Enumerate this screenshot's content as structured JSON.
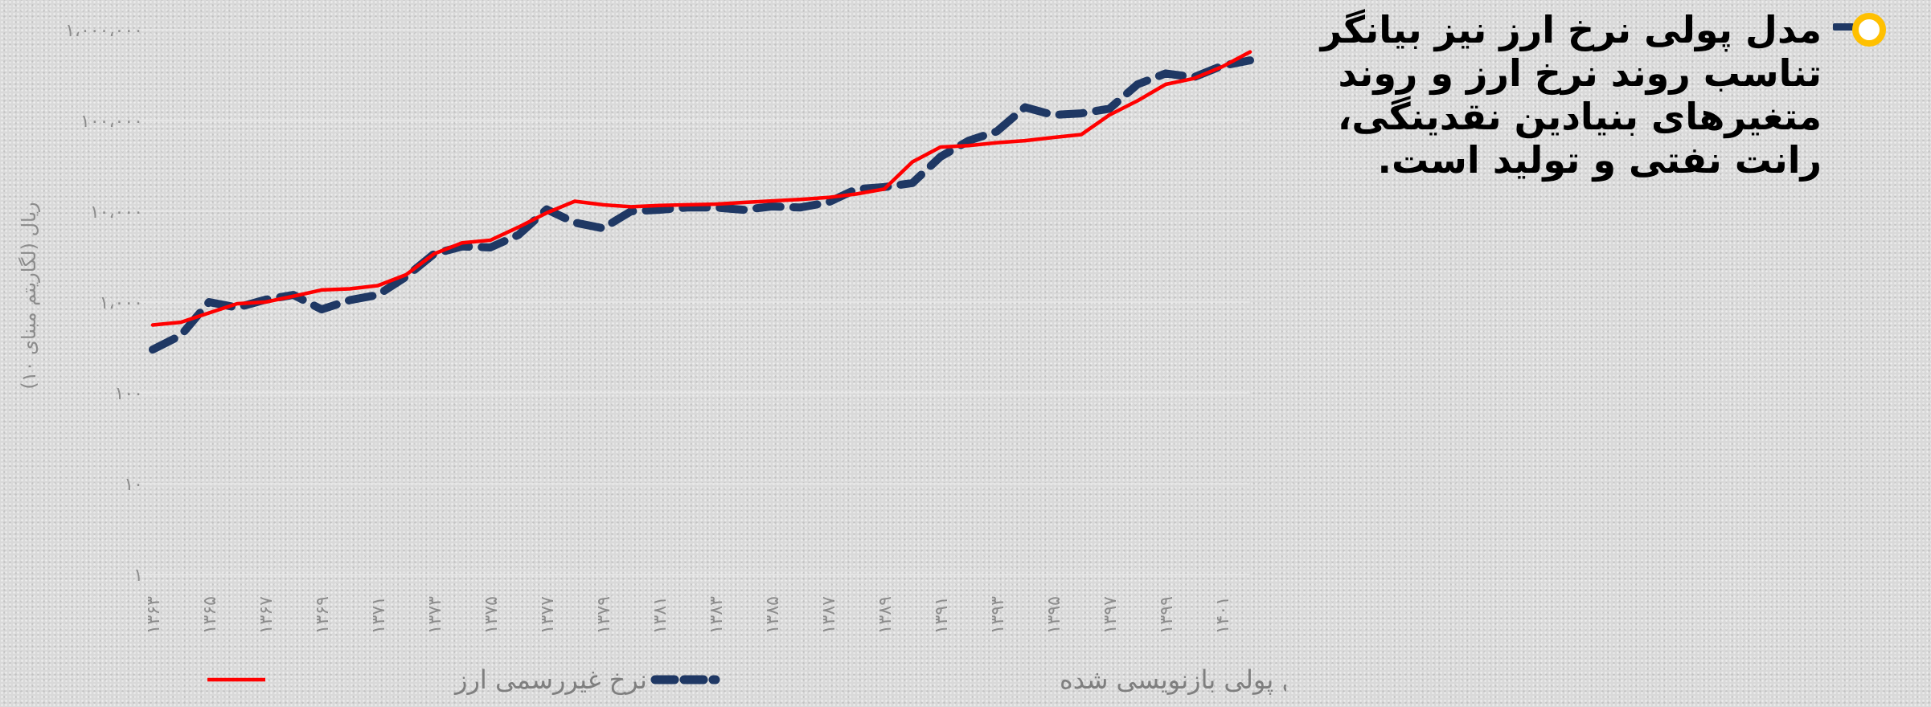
{
  "bullet": {
    "text": "مدل پولی نرخ ارز نیز بیانگر تناسب روند نرخ ارز و روند متغیرهای بنیادین نقدینگی، رانت نفتی و تولید است.",
    "icon": "ring-bullet-icon",
    "icon_colors": {
      "bar": "#1f3864",
      "ring": "#ffc000"
    }
  },
  "chart_data": {
    "type": "line",
    "y_scale": "log",
    "ylim": [
      1,
      1000000
    ],
    "y_ticks": [
      {
        "value": 1,
        "label": "۱"
      },
      {
        "value": 10,
        "label": "۱۰"
      },
      {
        "value": 100,
        "label": "۱۰۰"
      },
      {
        "value": 1000,
        "label": "۱،۰۰۰"
      },
      {
        "value": 10000,
        "label": "۱۰،۰۰۰"
      },
      {
        "value": 100000,
        "label": "۱۰۰،۰۰۰"
      },
      {
        "value": 1000000,
        "label": "۱،۰۰۰،۰۰۰"
      }
    ],
    "ylabel": "ریال (لگاریتم مبنای ۱۰)",
    "xlabel": "",
    "x": [
      1363,
      1364,
      1365,
      1366,
      1367,
      1368,
      1369,
      1370,
      1371,
      1372,
      1373,
      1374,
      1375,
      1376,
      1377,
      1378,
      1379,
      1380,
      1381,
      1382,
      1383,
      1384,
      1385,
      1386,
      1387,
      1388,
      1389,
      1390,
      1391,
      1392,
      1393,
      1394,
      1395,
      1396,
      1397,
      1398,
      1399,
      1400,
      1401,
      1402
    ],
    "x_tick_labels": [
      {
        "x": 1363,
        "label": "۱۳۶۳"
      },
      {
        "x": 1365,
        "label": "۱۳۶۵"
      },
      {
        "x": 1367,
        "label": "۱۳۶۷"
      },
      {
        "x": 1369,
        "label": "۱۳۶۹"
      },
      {
        "x": 1371,
        "label": "۱۳۷۱"
      },
      {
        "x": 1373,
        "label": "۱۳۷۳"
      },
      {
        "x": 1375,
        "label": "۱۳۷۵"
      },
      {
        "x": 1377,
        "label": "۱۳۷۷"
      },
      {
        "x": 1379,
        "label": "۱۳۷۹"
      },
      {
        "x": 1381,
        "label": "۱۳۸۱"
      },
      {
        "x": 1383,
        "label": "۱۳۸۳"
      },
      {
        "x": 1385,
        "label": "۱۳۸۵"
      },
      {
        "x": 1387,
        "label": "۱۳۸۷"
      },
      {
        "x": 1389,
        "label": "۱۳۸۹"
      },
      {
        "x": 1391,
        "label": "۱۳۹۱"
      },
      {
        "x": 1393,
        "label": "۱۳۹۳"
      },
      {
        "x": 1395,
        "label": "۱۳۹۵"
      },
      {
        "x": 1397,
        "label": "۱۳۹۷"
      },
      {
        "x": 1399,
        "label": "۱۳۹۹"
      },
      {
        "x": 1401,
        "label": "۱۴۰۱"
      }
    ],
    "grid": true,
    "legend_position": "bottom",
    "series": [
      {
        "name": "نرخ غیررسمی ارز",
        "color": "#ff0000",
        "style": "solid",
        "values": [
          560,
          600,
          760,
          960,
          1000,
          1160,
          1360,
          1400,
          1520,
          2000,
          3400,
          4500,
          4800,
          6700,
          9600,
          12900,
          11800,
          11200,
          11600,
          11800,
          12000,
          12500,
          13000,
          13500,
          14200,
          15500,
          17600,
          35000,
          51000,
          53000,
          57000,
          60000,
          65000,
          70000,
          115000,
          165000,
          250000,
          290000,
          390000,
          570000
        ]
      },
      {
        "name": "نرخ ارز مدل پولی بازنویسی شده",
        "color": "#1f3864",
        "style": "dashed",
        "values": [
          300,
          430,
          1000,
          870,
          1060,
          1200,
          830,
          1050,
          1200,
          1900,
          3400,
          4100,
          4000,
          5500,
          10500,
          7500,
          6500,
          10000,
          10400,
          11000,
          11000,
          10400,
          11300,
          11000,
          12500,
          17500,
          18500,
          20500,
          40000,
          60000,
          76000,
          140000,
          115000,
          120000,
          135000,
          250000,
          330000,
          300000,
          400000,
          460000
        ]
      }
    ]
  }
}
